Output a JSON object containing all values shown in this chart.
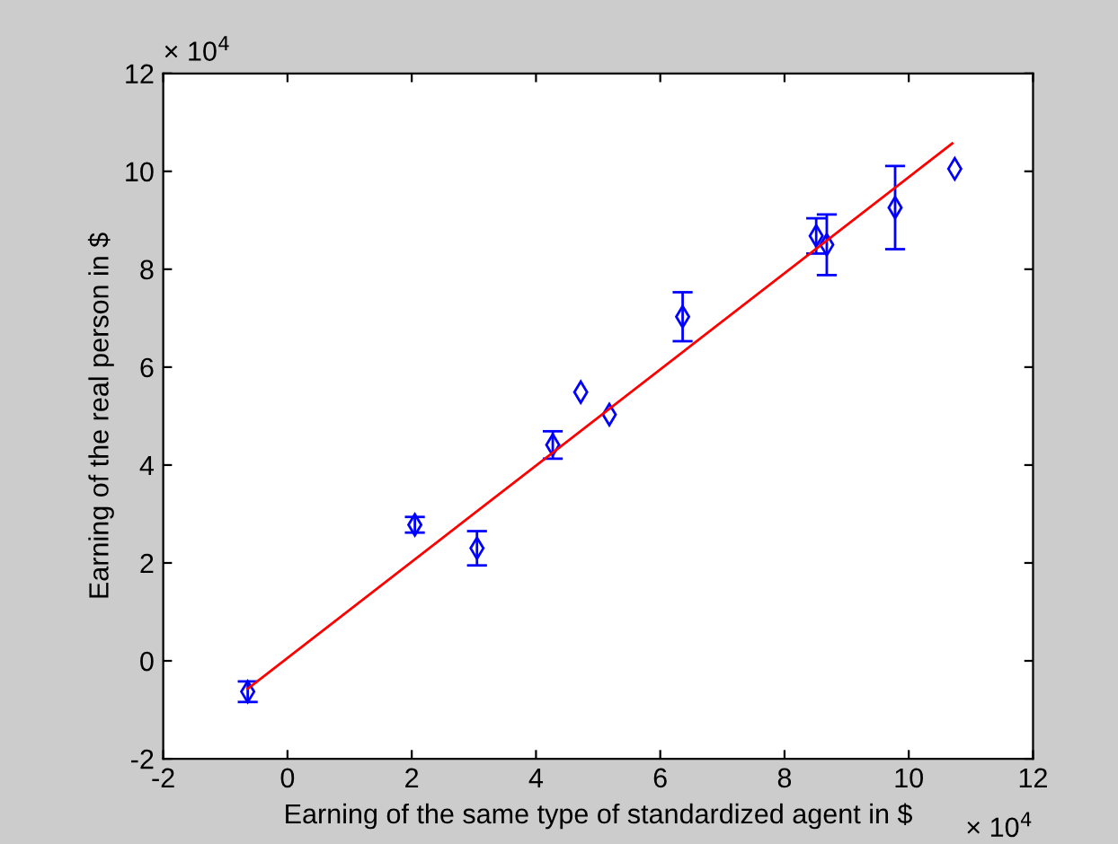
{
  "chart_data": {
    "type": "scatter",
    "xlabel": "Earning of the same type of standardized agent in $",
    "ylabel": "Earning of the real person in $",
    "annotations": [
      "× 10$^{4}$",
      "× 10$^{4}$"
    ],
    "xlim": [
      -2,
      12
    ],
    "xticks": [
      -2,
      0,
      2,
      4,
      6,
      8,
      10,
      12
    ],
    "ylim": [
      -2,
      12
    ],
    "yticks": [
      -2,
      0,
      2,
      4,
      6,
      8,
      10,
      12
    ],
    "grid": false,
    "legend": false,
    "series": [
      {
        "color": "#0000ff",
        "marker": "diamond",
        "x": [
          -0.64,
          2.05,
          3.05,
          4.27,
          4.72,
          5.18,
          6.36,
          8.51,
          8.68,
          9.78,
          10.74
        ],
        "values": [
          -0.63,
          2.78,
          2.3,
          4.41,
          5.49,
          5.03,
          7.03,
          8.68,
          8.5,
          9.26,
          10.05
        ],
        "errors": [
          0.21,
          0.16,
          0.35,
          0.28,
          null,
          null,
          0.5,
          0.36,
          0.62,
          0.85,
          null
        ]
      },
      {
        "type": "line",
        "color": "#ff0000",
        "marker": "none",
        "line_style": "solid",
        "x": [
          -0.64,
          10.7
        ],
        "values": [
          -0.57,
          10.57
        ]
      }
    ]
  }
}
